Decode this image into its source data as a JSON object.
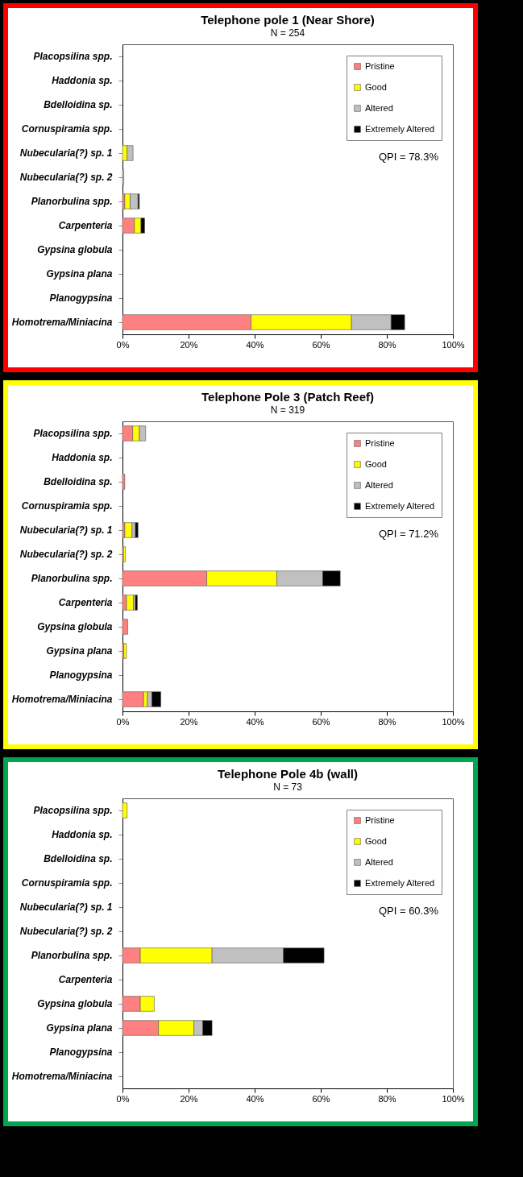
{
  "chart_data": [
    {
      "type": "bar",
      "orientation": "horizontal",
      "stacked": true,
      "title": "Telephone pole 1 (Near Shore)",
      "subtitle": "N = 254",
      "categories": [
        "Placopsilina spp.",
        "Haddonia sp.",
        "Bdelloidina sp.",
        "Cornuspiramia spp.",
        "Nubecularia(?) sp. 1",
        "Nubecularia(?) sp. 2",
        "Planorbulina spp.",
        "Carpenteria",
        "Gypsina globula",
        "Gypsina plana",
        "Planogypsina",
        "Homotrema/Miniacina"
      ],
      "series": [
        {
          "name": "Pristine",
          "color": "#ff8080",
          "values": [
            null,
            null,
            null,
            null,
            null,
            null,
            0.7,
            3.6,
            null,
            null,
            null,
            38.9
          ]
        },
        {
          "name": "Good",
          "color": "#ffff00",
          "values": [
            null,
            null,
            null,
            null,
            1.4,
            null,
            1.6,
            2.0,
            null,
            null,
            null,
            30.4
          ]
        },
        {
          "name": "Altered",
          "color": "#c0c0c0",
          "values": [
            null,
            null,
            null,
            null,
            1.8,
            0.4,
            2.4,
            null,
            null,
            null,
            null,
            12.0
          ]
        },
        {
          "name": "Extremely Altered",
          "color": "#000000",
          "values": [
            null,
            null,
            null,
            null,
            null,
            null,
            0.4,
            1.1,
            null,
            null,
            null,
            4.1
          ]
        }
      ],
      "xlim": [
        0,
        100
      ],
      "xticks": [
        {
          "value": 0,
          "label": "0%"
        },
        {
          "value": 20,
          "label": "20%"
        },
        {
          "value": 40,
          "label": "40%"
        },
        {
          "value": 60,
          "label": "60%"
        },
        {
          "value": 80,
          "label": "80%"
        },
        {
          "value": 100,
          "label": "100%"
        }
      ],
      "legend": "top right",
      "annotations": [
        "QPI = 78.3%"
      ]
    },
    {
      "type": "bar",
      "orientation": "horizontal",
      "stacked": true,
      "title": "Telephone Pole 3 (Patch Reef)",
      "subtitle": "N = 319",
      "categories": [
        "Placopsilina spp.",
        "Haddonia sp.",
        "Bdelloidina sp.",
        "Cornuspiramia spp.",
        "Nubecularia(?) sp. 1",
        "Nubecularia(?) sp. 2",
        "Planorbulina spp.",
        "Carpenteria",
        "Gypsina globula",
        "Gypsina plana",
        "Planogypsina",
        "Homotrema/Miniacina"
      ],
      "series": [
        {
          "name": "Pristine",
          "color": "#ff8080",
          "values": [
            3.1,
            null,
            0.7,
            null,
            0.7,
            0.3,
            25.5,
            1.2,
            1.6,
            0.4,
            null,
            6.4
          ]
        },
        {
          "name": "Good",
          "color": "#ffff00",
          "values": [
            2.0,
            null,
            null,
            null,
            2.2,
            0.6,
            21.2,
            2.1,
            null,
            0.8,
            null,
            1.1
          ]
        },
        {
          "name": "Altered",
          "color": "#c0c0c0",
          "values": [
            1.9,
            null,
            null,
            null,
            1.0,
            null,
            13.9,
            0.6,
            null,
            null,
            null,
            1.4
          ]
        },
        {
          "name": "Extremely Altered",
          "color": "#000000",
          "values": [
            null,
            null,
            null,
            null,
            0.8,
            null,
            5.3,
            0.6,
            null,
            null,
            null,
            2.7
          ]
        }
      ],
      "xlim": [
        0,
        100
      ],
      "xticks": [
        {
          "value": 0,
          "label": "0%"
        },
        {
          "value": 20,
          "label": "20%"
        },
        {
          "value": 40,
          "label": "40%"
        },
        {
          "value": 60,
          "label": "60%"
        },
        {
          "value": 80,
          "label": "80%"
        },
        {
          "value": 100,
          "label": "100%"
        }
      ],
      "legend": "top right",
      "annotations": [
        "QPI = 71.2%"
      ]
    },
    {
      "type": "bar",
      "orientation": "horizontal",
      "stacked": true,
      "title": "Telephone Pole 4b (wall)",
      "subtitle": "N = 73",
      "categories": [
        "Placopsilina spp.",
        "Haddonia sp.",
        "Bdelloidina sp.",
        "Cornuspiramia spp.",
        "Nubecularia(?) sp. 1",
        "Nubecularia(?) sp. 2",
        "Planorbulina spp.",
        "Carpenteria",
        "Gypsina globula",
        "Gypsina plana",
        "Planogypsina",
        "Homotrema/Miniacina"
      ],
      "series": [
        {
          "name": "Pristine",
          "color": "#ff8080",
          "values": [
            null,
            null,
            null,
            null,
            null,
            null,
            5.4,
            null,
            5.4,
            10.9,
            null,
            null
          ]
        },
        {
          "name": "Good",
          "color": "#ffff00",
          "values": [
            1.4,
            null,
            null,
            null,
            null,
            null,
            21.7,
            null,
            4.2,
            10.7,
            null,
            null
          ]
        },
        {
          "name": "Altered",
          "color": "#c0c0c0",
          "values": [
            null,
            null,
            null,
            null,
            null,
            null,
            21.6,
            null,
            null,
            2.7,
            null,
            null
          ]
        },
        {
          "name": "Extremely Altered",
          "color": "#000000",
          "values": [
            null,
            null,
            null,
            null,
            null,
            null,
            12.3,
            null,
            null,
            2.8,
            null,
            null
          ]
        }
      ],
      "xlim": [
        0,
        100
      ],
      "xticks": [
        {
          "value": 0,
          "label": "0%"
        },
        {
          "value": 20,
          "label": "20%"
        },
        {
          "value": 40,
          "label": "40%"
        },
        {
          "value": 60,
          "label": "60%"
        },
        {
          "value": 80,
          "label": "80%"
        },
        {
          "value": 100,
          "label": "100%"
        }
      ],
      "legend": "top right",
      "annotations": [
        "QPI = 60.3%"
      ]
    }
  ]
}
